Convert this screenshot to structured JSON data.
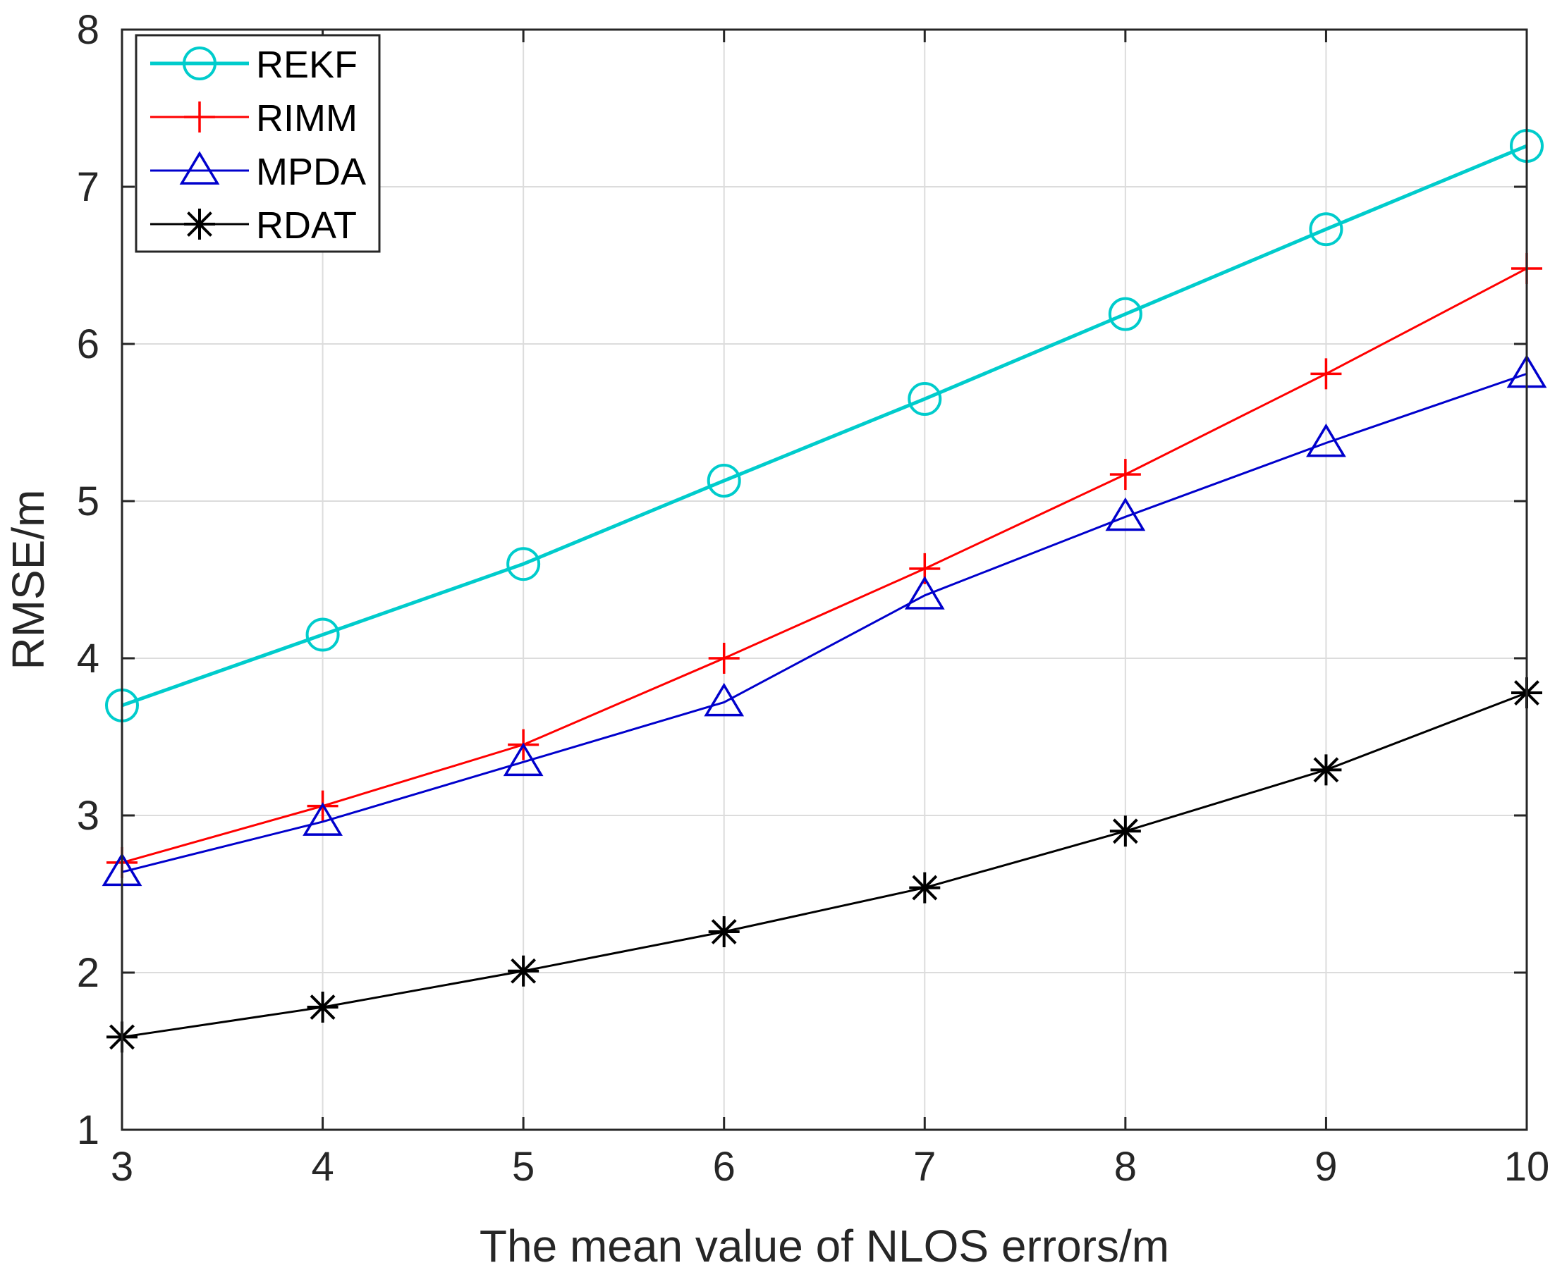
{
  "chart_data": {
    "type": "line",
    "title": "",
    "xlabel": "The mean value of NLOS errors/m",
    "ylabel": "RMSE/m",
    "x": [
      3,
      4,
      5,
      6,
      7,
      8,
      9,
      10
    ],
    "xlim": [
      3,
      10
    ],
    "ylim": [
      1,
      8
    ],
    "xticks": [
      3,
      4,
      5,
      6,
      7,
      8,
      9,
      10
    ],
    "yticks": [
      1,
      2,
      3,
      4,
      5,
      6,
      7,
      8
    ],
    "grid": true,
    "legend_position": "top-left",
    "series": [
      {
        "name": "REKF",
        "color": "#00cccc",
        "marker": "circle",
        "values": [
          3.7,
          4.15,
          4.6,
          5.13,
          5.65,
          6.19,
          6.73,
          7.26
        ]
      },
      {
        "name": "RIMM",
        "color": "#ff0000",
        "marker": "plus",
        "values": [
          2.7,
          3.06,
          3.45,
          4.0,
          4.57,
          5.17,
          5.81,
          6.48
        ]
      },
      {
        "name": "MPDA",
        "color": "#0000cc",
        "marker": "triangle",
        "values": [
          2.64,
          2.96,
          3.34,
          3.72,
          4.4,
          4.9,
          5.37,
          5.81
        ]
      },
      {
        "name": "RDAT",
        "color": "#000000",
        "marker": "star",
        "values": [
          1.59,
          1.78,
          2.01,
          2.26,
          2.54,
          2.9,
          3.29,
          3.78
        ]
      }
    ]
  }
}
